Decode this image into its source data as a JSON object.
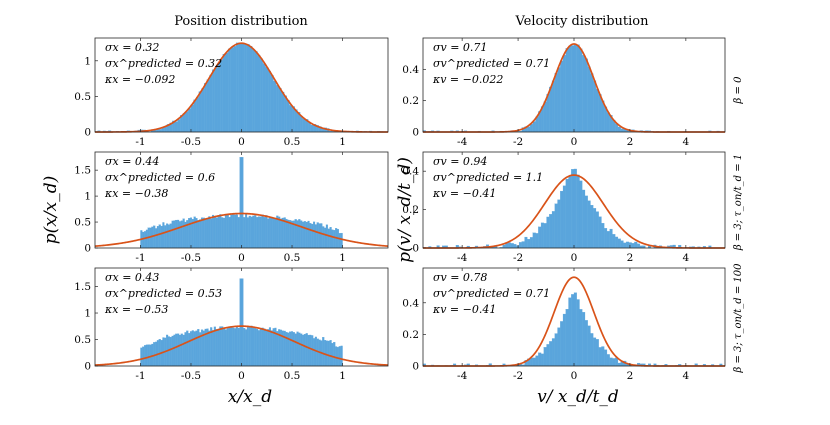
{
  "figure": {
    "column_titles": [
      "Position distribution",
      "Velocity distribution"
    ],
    "row_labels": [
      "β = 0",
      "β = 3; τ_on/t_d = 1",
      "β = 3; τ_on/t_d = 100"
    ],
    "y_label_left": "p(x/x_d)",
    "y_label_right": "p(v/ x_d/t_d)",
    "x_label_left": "x/x_d",
    "x_label_right": "v/ x_d/t_d",
    "colors": {
      "histogram": "#5aa5dc",
      "curve": "#d95319"
    }
  },
  "chart_data": [
    {
      "type": "bar",
      "panel": "position-row1",
      "xlim": [
        -1.45,
        1.45
      ],
      "ylim": [
        0,
        1.32
      ],
      "xticks": [
        "-1",
        "-0.5",
        "0",
        "0.5",
        "1"
      ],
      "yticks": [
        "0",
        "0.5",
        "1"
      ],
      "sigma_hist": 0.32,
      "spike": 0,
      "support": 1.45,
      "noise": 0.02,
      "stats": [
        "σx = 0.32",
        "σx^predicted = 0.32",
        "κx = −0.092"
      ],
      "curve": {
        "kind": "gauss",
        "sigma": 0.32
      }
    },
    {
      "type": "bar",
      "panel": "velocity-row1",
      "xlim": [
        -5.4,
        5.4
      ],
      "ylim": [
        0,
        0.6
      ],
      "xticks": [
        "-4",
        "-2",
        "0",
        "2",
        "4"
      ],
      "yticks": [
        "0",
        "0.2",
        "0.4"
      ],
      "sigma_hist": 0.71,
      "spike": 0,
      "support": 5.4,
      "noise": 0.01,
      "stats": [
        "σv = 0.71",
        "σv^predicted = 0.71",
        "κv = −0.022"
      ],
      "curve": {
        "kind": "gauss",
        "sigma": 0.71
      }
    },
    {
      "type": "bar",
      "panel": "position-row2",
      "xlim": [
        -1.45,
        1.45
      ],
      "ylim": [
        0,
        1.85
      ],
      "xticks": [
        "-1",
        "-0.5",
        "0",
        "0.5",
        "1"
      ],
      "yticks": [
        "0",
        "0.5",
        "1",
        "1.5"
      ],
      "hist_kind": "cap",
      "hist_amp": 0.62,
      "spike": 1.75,
      "support": 1.0,
      "noise": 0.04,
      "stats": [
        "σx = 0.44",
        "σx^predicted = 0.6",
        "κx = −0.38"
      ],
      "curve": {
        "kind": "gauss",
        "sigma": 0.6
      }
    },
    {
      "type": "bar",
      "panel": "velocity-row2",
      "xlim": [
        -5.4,
        5.4
      ],
      "ylim": [
        0,
        0.5
      ],
      "xticks": [
        "-4",
        "-2",
        "0",
        "2",
        "4"
      ],
      "yticks": [
        "0",
        "0.2",
        "0.4"
      ],
      "hist_kind": "laplace",
      "hist_amp": 0.44,
      "hist_width": 0.94,
      "spike": 0,
      "support": 5.4,
      "noise": 0.015,
      "stats": [
        "σv = 0.94",
        "σv^predicted = 1.1",
        "κv = −0.41"
      ],
      "curve": {
        "kind": "gauss",
        "sigma": 1.05
      }
    },
    {
      "type": "bar",
      "panel": "position-row3",
      "xlim": [
        -1.45,
        1.45
      ],
      "ylim": [
        0,
        1.85
      ],
      "xticks": [
        "-1",
        "-0.5",
        "0",
        "0.5",
        "1"
      ],
      "yticks": [
        "0",
        "0.5",
        "1",
        "1.5"
      ],
      "hist_kind": "cap",
      "hist_amp": 0.72,
      "spike": 1.65,
      "support": 1.0,
      "noise": 0.04,
      "stats": [
        "σx = 0.43",
        "σx^predicted = 0.53",
        "κx = −0.53"
      ],
      "curve": {
        "kind": "gauss",
        "sigma": 0.53
      }
    },
    {
      "type": "bar",
      "panel": "velocity-row3",
      "xlim": [
        -5.4,
        5.4
      ],
      "ylim": [
        0,
        0.62
      ],
      "xticks": [
        "-4",
        "-2",
        "0",
        "2",
        "4"
      ],
      "yticks": [
        "0",
        "0.2",
        "0.4"
      ],
      "hist_kind": "laplace",
      "hist_amp": 0.49,
      "hist_width": 0.78,
      "spike": 0,
      "support": 5.4,
      "noise": 0.015,
      "stats": [
        "σv = 0.78",
        "σv^predicted = 0.71",
        "κv = −0.41"
      ],
      "curve": {
        "kind": "gauss",
        "sigma": 0.71
      }
    }
  ]
}
